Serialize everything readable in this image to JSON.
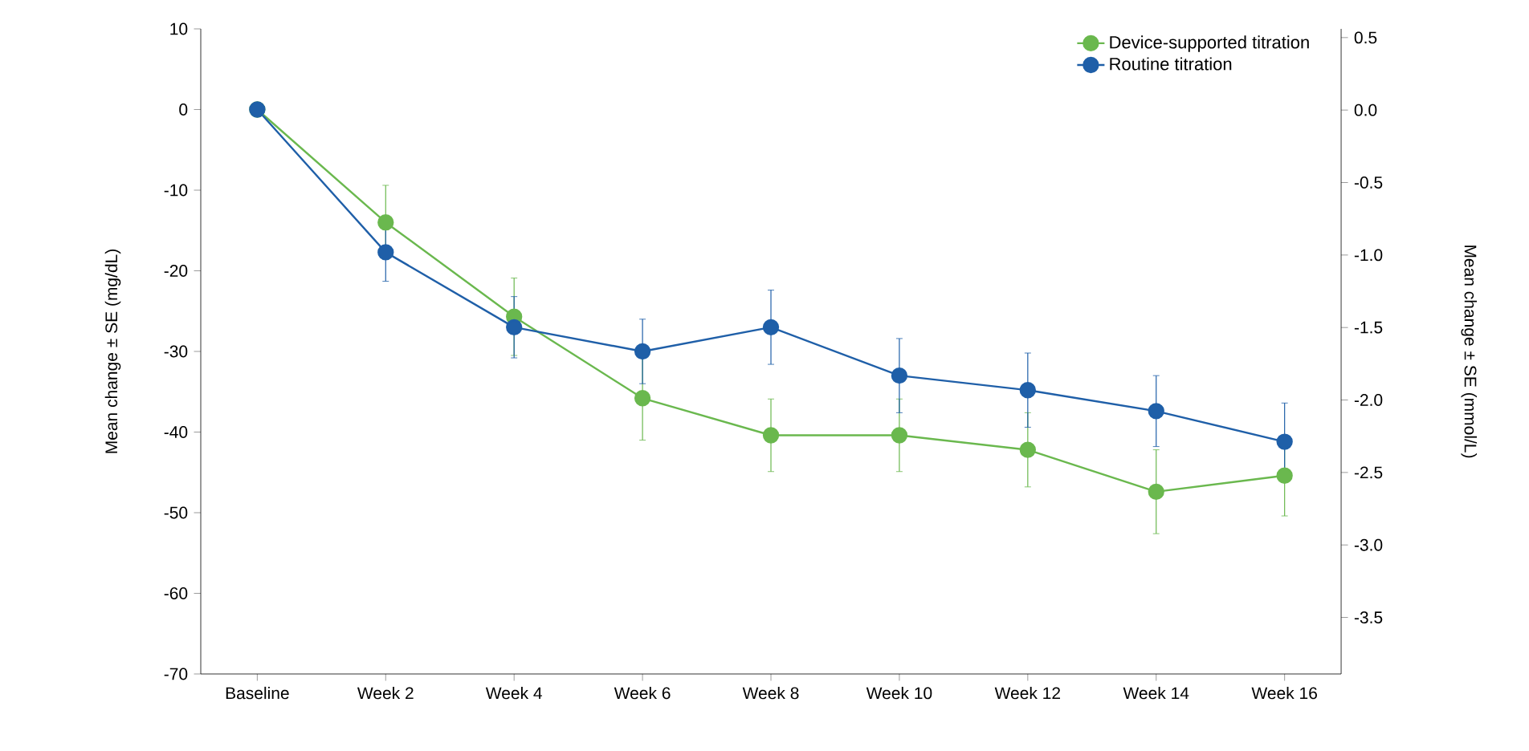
{
  "chart_data": {
    "type": "line",
    "categories": [
      "Baseline",
      "Week 2",
      "Week 4",
      "Week 6",
      "Week 8",
      "Week 10",
      "Week 12",
      "Week 14",
      "Week 16"
    ],
    "series": [
      {
        "name": "Device-supported titration",
        "color": "#6ab84e",
        "values": [
          0,
          -14,
          -25.7,
          -35.8,
          -40.4,
          -40.4,
          -42.2,
          -47.4,
          -45.4
        ],
        "errors": [
          null,
          4.6,
          4.8,
          5.2,
          4.5,
          4.5,
          4.6,
          5.2,
          5.0
        ]
      },
      {
        "name": "Routine titration",
        "color": "#1f5fa8",
        "values": [
          0,
          -17.7,
          -27,
          -30,
          -27,
          -33,
          -34.8,
          -37.4,
          -41.2
        ],
        "errors": [
          null,
          3.6,
          3.8,
          4.0,
          4.6,
          4.6,
          4.6,
          4.4,
          4.8
        ]
      }
    ],
    "ylabel": "Mean change ± SE (mg/dL)",
    "y2label": "Mean change ± SE (mmol/L)",
    "ylim": [
      -70,
      10
    ],
    "yticks": [
      -70,
      -60,
      -50,
      -40,
      -30,
      -20,
      -10,
      0,
      10
    ],
    "y2lim": [
      -3.89,
      0.56
    ],
    "y2ticks": [
      {
        "value": -3.5,
        "label": "-3.5"
      },
      {
        "value": -3.0,
        "label": "-3.0"
      },
      {
        "value": -2.5,
        "label": "-2.5"
      },
      {
        "value": -2.0,
        "label": "-2.0"
      },
      {
        "value": -1.5,
        "label": "-1.5"
      },
      {
        "value": -1.0,
        "label": "-1.0"
      },
      {
        "value": -0.5,
        "label": "-0.5"
      },
      {
        "value": 0,
        "label": "0.0"
      },
      {
        "value": 0.5,
        "label": "0.5"
      }
    ],
    "marker": "circle",
    "line_style": "solid",
    "grid": false,
    "legend": "top right"
  }
}
